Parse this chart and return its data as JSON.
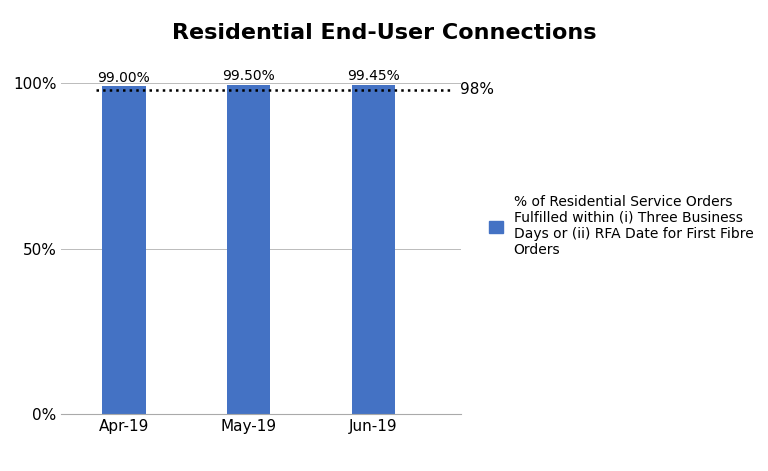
{
  "title": "Residential End-User Connections",
  "categories": [
    "Apr-19",
    "May-19",
    "Jun-19"
  ],
  "values": [
    0.99,
    0.995,
    0.9945
  ],
  "bar_labels": [
    "99.00%",
    "99.50%",
    "99.45%"
  ],
  "bar_color": "#4472C4",
  "threshold_value": 0.98,
  "threshold_label": "98%",
  "threshold_color": "black",
  "threshold_linestyle": "dotted",
  "ylim": [
    0,
    1.08
  ],
  "yticks": [
    0,
    0.5,
    1.0
  ],
  "ytick_labels": [
    "0%",
    "50%",
    "100%"
  ],
  "legend_label": "% of Residential Service Orders\nFulfilled within (i) Three Business\nDays or (ii) RFA Date for First Fibre\nOrders",
  "background_color": "#ffffff",
  "title_fontsize": 16,
  "tick_fontsize": 11,
  "label_fontsize": 10,
  "bar_label_fontsize": 10,
  "bar_width": 0.35,
  "xlim": [
    -0.5,
    2.7
  ]
}
